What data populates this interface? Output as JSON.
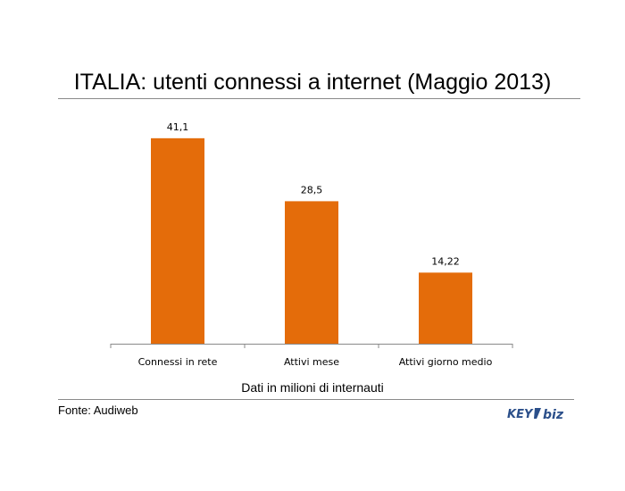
{
  "chart_data": {
    "type": "bar",
    "title": "ITALIA: utenti connessi a internet (Maggio 2013)",
    "xlabel": "Dati in milioni di internauti",
    "ylabel": "",
    "categories": [
      "Connessi in rete",
      "Attivi mese",
      "Attivi giorno medio"
    ],
    "values": [
      41.1,
      28.5,
      14.22
    ],
    "data_labels": [
      "41,1",
      "28,5",
      "14,22"
    ],
    "ylim": [
      0,
      45
    ],
    "grid": false,
    "legend": "none",
    "bar_color": "#e46c0a"
  },
  "source": "Fonte: Audiweb",
  "logo": {
    "text_left": "KEY",
    "text_right": "biz",
    "color_left": "#2b4f8a",
    "color_right": "#2b4f8a"
  }
}
